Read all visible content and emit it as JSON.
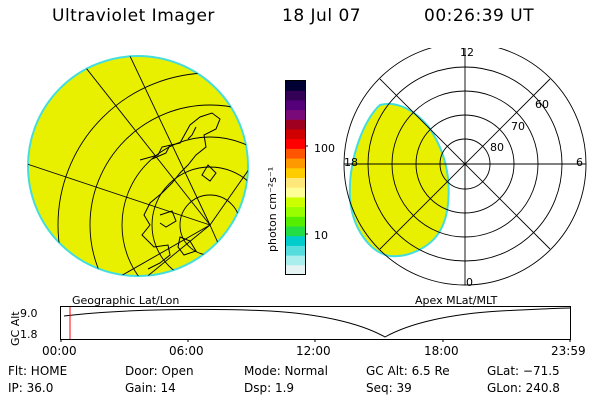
{
  "header": {
    "instrument": "Ultraviolet Imager",
    "date": "18 Jul 07",
    "time": "00:26:39 UT"
  },
  "colorbar": {
    "label": "photon cm⁻²s⁻¹",
    "ticks": [
      "100",
      "10"
    ],
    "colors": [
      "#000033",
      "#330055",
      "#55007a",
      "#7a0a7a",
      "#a00020",
      "#d00000",
      "#ff0000",
      "#ff5500",
      "#ff9900",
      "#ffcc00",
      "#ffe87a",
      "#ffff99",
      "#ccff00",
      "#99ff00",
      "#55ee00",
      "#22dd44",
      "#00cccc",
      "#55dddd",
      "#aaeeee",
      "#e6f3f3"
    ]
  },
  "geo_panel": {
    "label": "Geographic Lat/Lon",
    "fill_color": "#e8f000",
    "edge_color": "#44dddd"
  },
  "apex_panel": {
    "label": "Apex MLat/MLT",
    "mlt_labels": {
      "top": "12",
      "left": "18",
      "right": "6",
      "bottom": "0"
    },
    "lat_labels": [
      "60",
      "70",
      "80"
    ],
    "fill_color": "#e8f000",
    "edge_color": "#44dddd"
  },
  "altitude_plot": {
    "ylabel": "GC Alt",
    "yticks": [
      "9.0",
      "1.8"
    ],
    "xticks": [
      "00:00",
      "06:00",
      "12:00",
      "18:00",
      "23:59"
    ],
    "marker_color": "#ff0000"
  },
  "status": {
    "flt": "Flt:  HOME",
    "ip": "IP:  36.0",
    "door": "Door:  Open",
    "gain": "Gain:  14",
    "mode": "Mode:  Normal",
    "dsp": "Dsp:      1.9",
    "gcalt": "GC Alt:  6.5 Re",
    "seq": "Seq:  39",
    "glat": "GLat:  −71.5",
    "glon": "GLon:  240.8"
  }
}
